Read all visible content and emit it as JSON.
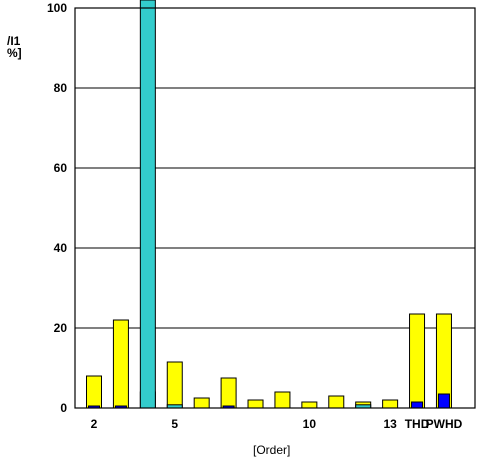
{
  "chart_data": {
    "type": "bar",
    "ylabel_lines": [
      "/I1",
      "%]"
    ],
    "xlabel": "[Order]",
    "ylim": [
      0,
      100
    ],
    "yticks": [
      "0",
      "20",
      "40",
      "60",
      "80",
      "100"
    ],
    "xtick_labels": [
      {
        "slot": 1,
        "label": "2"
      },
      {
        "slot": 4,
        "label": "5"
      },
      {
        "slot": 9,
        "label": "10"
      },
      {
        "slot": 12,
        "label": "13"
      },
      {
        "slot": 13,
        "label": "THD"
      },
      {
        "slot": 14,
        "label": "PWHD"
      }
    ],
    "grid": "horizontal",
    "colors": {
      "yellow": "#ffff00",
      "blue": "#0000ff",
      "cyan": "#33cccc",
      "outline": "#000000"
    },
    "bars": [
      {
        "slot": 1,
        "yellow": 8,
        "blue": 0.4,
        "cyan": 0
      },
      {
        "slot": 2,
        "yellow": 22,
        "blue": 0.4,
        "cyan": 0
      },
      {
        "slot": 3,
        "yellow": 4,
        "blue": 0,
        "cyan": 102
      },
      {
        "slot": 4,
        "yellow": 11.5,
        "blue": 0,
        "cyan": 0.8
      },
      {
        "slot": 5,
        "yellow": 2.5,
        "blue": 0,
        "cyan": 0
      },
      {
        "slot": 6,
        "yellow": 7.5,
        "blue": 0.4,
        "cyan": 0
      },
      {
        "slot": 7,
        "yellow": 2,
        "blue": 0,
        "cyan": 0
      },
      {
        "slot": 8,
        "yellow": 4,
        "blue": 0,
        "cyan": 0
      },
      {
        "slot": 9,
        "yellow": 1.5,
        "blue": 0,
        "cyan": 0
      },
      {
        "slot": 10,
        "yellow": 3,
        "blue": 0,
        "cyan": 0
      },
      {
        "slot": 11,
        "yellow": 1.5,
        "blue": 0,
        "cyan": 0.8
      },
      {
        "slot": 12,
        "yellow": 2,
        "blue": 0,
        "cyan": 0
      },
      {
        "slot": 13,
        "yellow": 23.5,
        "blue": 1.5,
        "cyan": 0
      },
      {
        "slot": 14,
        "yellow": 23.5,
        "blue": 3.5,
        "cyan": 0
      }
    ]
  }
}
